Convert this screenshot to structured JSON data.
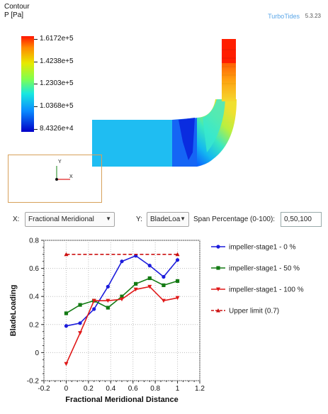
{
  "viewport": {
    "contour_label": "Contour",
    "field_label": "P [Pa]",
    "app_name": "TurboTides",
    "app_version": "5.3.23",
    "colorbar_labels": [
      "1.6172e+5",
      "1.4238e+5",
      "1.2303e+5",
      "1.0368e+5",
      "8.4326e+4"
    ],
    "triad": {
      "y": "Y",
      "x": "X"
    }
  },
  "controls": {
    "x_label": "X:",
    "x_selected": "Fractional Meridional",
    "y_label": "Y:",
    "y_selected": "BladeLoa",
    "span_label": "Span Percentage (0-100):",
    "span_value": "0,50,100"
  },
  "chart_data": {
    "type": "line",
    "xlabel": "Fractional Meridional Distance",
    "ylabel": "BladeLoading",
    "xlim": [
      -0.2,
      1.2
    ],
    "ylim": [
      -0.2,
      0.8
    ],
    "xticks": [
      "-0.2",
      "0",
      "0.2",
      "0.4",
      "0.6",
      "0.8",
      "1",
      "1.2"
    ],
    "yticks": [
      "-0.2",
      "0",
      "0.2",
      "0.4",
      "0.6",
      "0.8"
    ],
    "grid": true,
    "legend_position": "right",
    "x": [
      0,
      0.125,
      0.25,
      0.375,
      0.5,
      0.625,
      0.75,
      0.875,
      1.0
    ],
    "series": [
      {
        "name": "impeller-stage1 - 0 %",
        "color": "#1c1cdc",
        "marker": "circle",
        "dash": false,
        "values": [
          0.19,
          0.21,
          0.31,
          0.47,
          0.65,
          0.69,
          0.62,
          0.54,
          0.66
        ]
      },
      {
        "name": "impeller-stage1 - 50 %",
        "color": "#137a13",
        "marker": "square",
        "dash": false,
        "values": [
          0.28,
          0.34,
          0.37,
          0.32,
          0.4,
          0.49,
          0.53,
          0.48,
          0.51
        ]
      },
      {
        "name": "impeller-stage1 - 100 %",
        "color": "#e01818",
        "marker": "triangle-down",
        "dash": false,
        "values": [
          -0.08,
          0.14,
          0.37,
          0.37,
          0.38,
          0.45,
          0.47,
          0.37,
          0.39
        ]
      },
      {
        "name": "Upper limit (0.7)",
        "color": "#cc1010",
        "marker": "triangle-up",
        "dash": true,
        "x": [
          0,
          1.0
        ],
        "values": [
          0.7,
          0.7
        ]
      }
    ]
  }
}
